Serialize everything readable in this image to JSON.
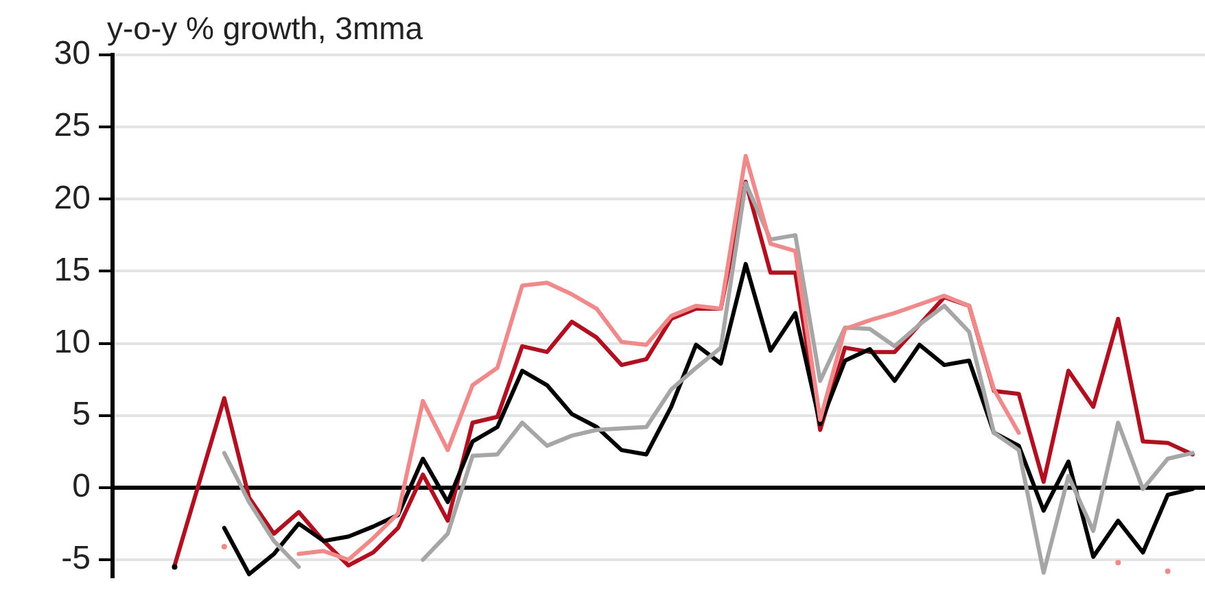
{
  "chart_data": {
    "type": "line",
    "ylabel": "y-o-y % growth, 3mma",
    "categories": [
      null,
      null,
      null,
      null,
      null,
      null,
      null,
      null,
      null,
      null,
      null,
      null,
      null,
      null,
      null,
      null,
      null,
      null,
      null,
      null,
      null,
      null,
      null,
      null,
      null,
      null,
      null,
      null,
      null,
      null,
      null,
      null,
      null,
      null,
      null,
      null,
      null,
      null,
      null,
      null,
      null,
      null,
      null,
      null
    ],
    "series": [
      {
        "color": "#f08a8a",
        "values": [
          null,
          null,
          null,
          null,
          -4.1,
          null,
          null,
          -4.6,
          -4.4,
          -5.0,
          -3.5,
          -1.8,
          6.0,
          2.6,
          7.1,
          8.3,
          14.0,
          14.2,
          13.4,
          12.4,
          10.1,
          9.9,
          11.9,
          12.6,
          12.4,
          23.0,
          16.9,
          16.4,
          4.7,
          11.0,
          11.6,
          12.1,
          12.7,
          13.3,
          12.6,
          6.8,
          3.8,
          null,
          null,
          null,
          -5.2,
          null,
          -5.8,
          null
        ]
      },
      {
        "color": "#a6a6a6",
        "values": [
          null,
          null,
          null,
          null,
          2.4,
          -1.0,
          -3.7,
          -5.5,
          null,
          null,
          null,
          null,
          -5.0,
          -3.2,
          2.2,
          2.3,
          4.5,
          2.9,
          3.6,
          4.0,
          4.1,
          4.2,
          6.8,
          8.3,
          9.7,
          21.1,
          17.2,
          17.5,
          7.4,
          11.1,
          11.0,
          9.8,
          11.3,
          12.6,
          10.8,
          3.8,
          2.6,
          -5.9,
          0.8,
          -3.0,
          4.5,
          -0.1,
          2.0,
          2.4
        ]
      },
      {
        "color": "#000000",
        "values": [
          null,
          null,
          -5.5,
          null,
          -2.8,
          -6.0,
          -4.6,
          -2.5,
          -3.7,
          -3.4,
          -2.7,
          -1.9,
          2.0,
          -1.0,
          3.2,
          4.2,
          8.1,
          7.1,
          5.1,
          4.2,
          2.6,
          2.3,
          5.6,
          9.9,
          8.6,
          15.5,
          9.5,
          12.1,
          4.4,
          8.8,
          9.6,
          7.4,
          9.9,
          8.5,
          8.8,
          3.8,
          2.9,
          -1.6,
          1.8,
          -4.8,
          -2.3,
          -4.5,
          -0.5,
          -0.1
        ]
      },
      {
        "color": "#b01020",
        "values": [
          null,
          null,
          -5.4,
          0.4,
          6.2,
          -0.7,
          -3.2,
          -1.7,
          -3.7,
          -5.4,
          -4.5,
          -2.8,
          0.9,
          -2.3,
          4.5,
          4.9,
          9.8,
          9.4,
          11.5,
          10.4,
          8.5,
          8.9,
          11.7,
          12.4,
          12.4,
          21.2,
          14.9,
          14.9,
          4.0,
          9.7,
          9.4,
          9.4,
          11.3,
          13.2,
          12.6,
          6.7,
          6.5,
          0.4,
          8.1,
          5.6,
          11.7,
          3.2,
          3.1,
          2.3
        ]
      }
    ],
    "ylim": [
      -6.2,
      30
    ],
    "yticks": [
      -5,
      0,
      5,
      10,
      15,
      20,
      25,
      30
    ],
    "grid": "y",
    "tick_labels": "y"
  }
}
